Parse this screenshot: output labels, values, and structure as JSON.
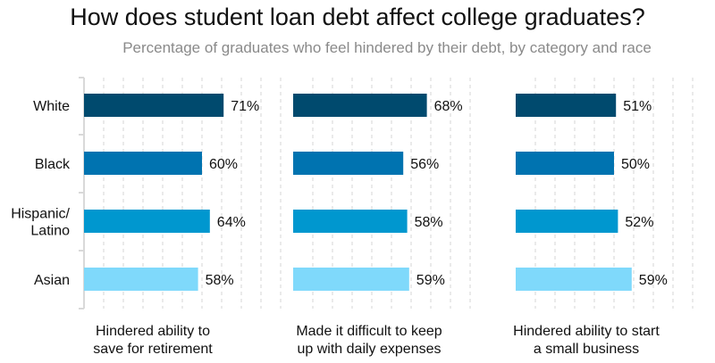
{
  "chart_data": {
    "type": "bar",
    "orientation": "horizontal",
    "title": "How does student loan debt affect college graduates?",
    "subtitle": "Percentage of graduates who feel hindered by their debt, by category and race",
    "categories": [
      "White",
      "Black",
      "Hispanic/\nLatino",
      "Asian"
    ],
    "value_suffix": "%",
    "xlim": [
      0,
      100
    ],
    "grid": true,
    "legend": "none",
    "colors": [
      "#004a6e",
      "#0073b0",
      "#0097cf",
      "#7fd9fb"
    ],
    "panels": [
      {
        "label": "Hindered ability to\nsave for retirement",
        "values": [
          71,
          60,
          64,
          58
        ]
      },
      {
        "label": "Made it difficult to keep\nup with daily expenses",
        "values": [
          68,
          56,
          58,
          59
        ]
      },
      {
        "label": "Hindered ability to start\na small business",
        "values": [
          51,
          50,
          52,
          59
        ]
      }
    ]
  }
}
